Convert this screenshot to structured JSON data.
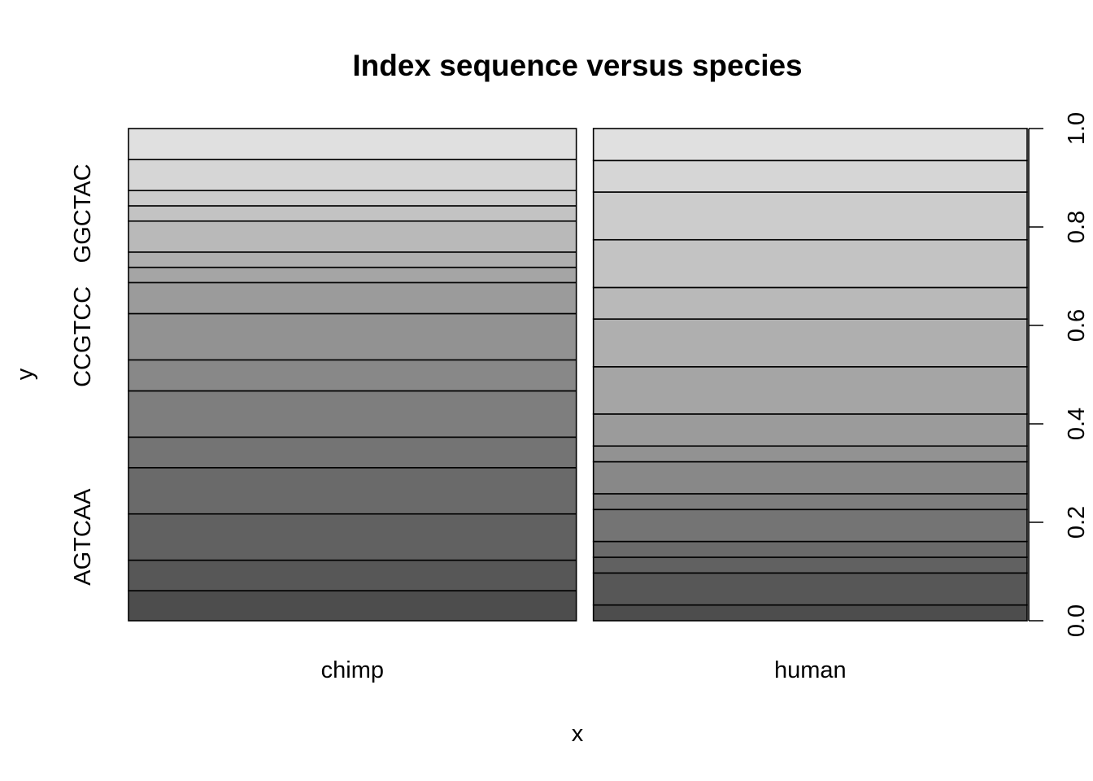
{
  "chart_data": {
    "type": "spineplot",
    "title": "Index sequence versus species",
    "xlabel": "x",
    "ylabel": "y",
    "categories": [
      "chimp",
      "human"
    ],
    "column_widths": [
      0.508,
      0.492
    ],
    "y_left_tick_labels": [
      "AGTCAA",
      "CCGTCC",
      "GGCTAC"
    ],
    "y_right_ticks": [
      "0.0",
      "0.2",
      "0.4",
      "0.6",
      "0.8",
      "1.0"
    ],
    "ylim": [
      0,
      1
    ],
    "n_levels": 16,
    "series": [
      {
        "name": "chimp",
        "cumulative_bounds": [
          0.061,
          0.123,
          0.217,
          0.311,
          0.373,
          0.467,
          0.53,
          0.624,
          0.687,
          0.718,
          0.749,
          0.812,
          0.843,
          0.874,
          0.937,
          1.0
        ]
      },
      {
        "name": "human",
        "cumulative_bounds": [
          0.032,
          0.097,
          0.129,
          0.161,
          0.226,
          0.258,
          0.323,
          0.355,
          0.42,
          0.516,
          0.613,
          0.677,
          0.774,
          0.871,
          0.935,
          1.0
        ]
      }
    ],
    "grid": false
  }
}
